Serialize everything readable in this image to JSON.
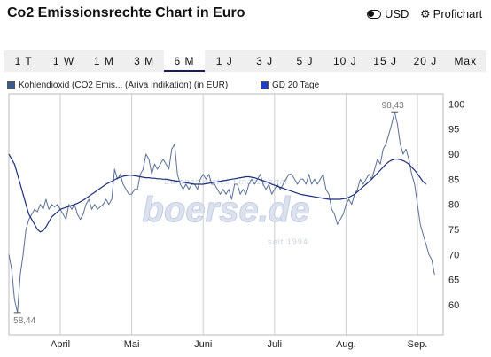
{
  "header": {
    "title": "Co2 Emissionsrechte Chart in Euro",
    "currency_label": "USD",
    "profichart_label": "Profichart"
  },
  "tabs": [
    {
      "label": "1 T",
      "active": false
    },
    {
      "label": "1 W",
      "active": false
    },
    {
      "label": "1 M",
      "active": false
    },
    {
      "label": "3 M",
      "active": false
    },
    {
      "label": "6 M",
      "active": true
    },
    {
      "label": "1 J",
      "active": false
    },
    {
      "label": "3 J",
      "active": false
    },
    {
      "label": "5 J",
      "active": false
    },
    {
      "label": "10 J",
      "active": false
    },
    {
      "label": "15 J",
      "active": false
    },
    {
      "label": "20 J",
      "active": false
    },
    {
      "label": "Max",
      "active": false
    }
  ],
  "watermark": {
    "line1": "Europas erstes Finanzportal",
    "brand": "boerse.de",
    "line3": "seit 1994"
  },
  "colors": {
    "price_line": "#5a6f95",
    "ma_line": "#1c2f7a",
    "legend_price": "#3d5a8c",
    "legend_ma": "#1f3fc8",
    "grid": "#cccccc",
    "tab_bg": "#efefef"
  },
  "chart_data": {
    "type": "line",
    "title": "",
    "x_tick_labels": [
      "April",
      "Mai",
      "Juni",
      "Juli",
      "Aug.",
      "Sep."
    ],
    "x_tick_positions": [
      18,
      43,
      68,
      93,
      118,
      143
    ],
    "x_range": [
      0,
      152
    ],
    "y_ticks": [
      60,
      65,
      70,
      75,
      80,
      85,
      90,
      95,
      100
    ],
    "ylim": [
      54,
      102
    ],
    "grid": "vertical",
    "legend_position": "top",
    "annotations": [
      {
        "text": "98,43",
        "x": 135,
        "y": 98.43
      },
      {
        "text": "58,44",
        "x": 3,
        "y": 58.44
      }
    ],
    "series": [
      {
        "name": "Kohlendioxid (CO2 Emis... (Ariva Indikation) (in EUR)",
        "values": [
          70,
          67,
          61,
          58.44,
          66,
          70,
          75,
          77,
          78,
          79,
          78.5,
          80,
          79,
          81,
          79,
          80,
          79.5,
          80,
          79,
          78,
          77,
          80,
          79,
          80,
          78,
          77,
          78,
          80,
          81,
          79,
          80,
          79,
          79.5,
          80,
          81,
          80,
          81,
          87,
          85,
          86,
          84,
          83,
          82,
          82,
          83,
          83,
          86,
          87,
          90,
          89,
          86,
          88,
          87,
          88,
          89,
          88,
          87,
          91,
          92,
          86,
          84,
          83,
          84,
          83,
          84,
          84,
          83,
          85,
          86,
          85,
          86,
          84,
          84,
          83,
          82,
          83,
          82,
          83,
          81,
          84,
          84,
          82,
          83,
          82,
          84,
          85,
          84,
          85,
          86,
          84,
          83,
          84,
          82,
          83,
          84,
          83,
          84,
          85,
          86,
          86,
          85,
          84,
          85,
          85,
          84,
          86,
          84,
          85,
          84,
          85,
          86,
          83,
          82,
          79,
          78,
          76,
          77,
          78,
          80,
          81,
          80,
          82,
          83,
          85,
          84,
          85,
          86,
          85,
          87,
          89,
          88,
          91,
          92,
          94,
          96,
          98.43,
          96,
          92,
          90,
          91,
          89,
          86,
          84,
          80,
          76,
          74,
          72,
          70,
          69,
          66
        ],
        "color": "#5a6f95"
      },
      {
        "name": "GD 20 Tage",
        "values": [
          90,
          89,
          88,
          86,
          84,
          82,
          80,
          78,
          77,
          76,
          75,
          74.5,
          74.8,
          75.5,
          76.5,
          77.5,
          78,
          78.5,
          79,
          79.2,
          79.4,
          79.6,
          79.8,
          80,
          80.2,
          80.5,
          80.8,
          81.2,
          81.6,
          82,
          82.4,
          82.8,
          83.2,
          83.6,
          84,
          84.3,
          84.6,
          84.9,
          85.2,
          85.4,
          85.6,
          85.7,
          85.8,
          85.8,
          85.7,
          85.6,
          85.5,
          85.4,
          85.3,
          85.3,
          85.2,
          85.2,
          85.1,
          85.1,
          85,
          85,
          84.9,
          84.8,
          84.7,
          84.6,
          84.5,
          84.4,
          84.3,
          84.2,
          84.1,
          84,
          84,
          84,
          84,
          84.1,
          84.2,
          84.3,
          84.4,
          84.5,
          84.6,
          84.7,
          84.8,
          84.9,
          85,
          85.1,
          85.2,
          85.3,
          85.4,
          85.5,
          85.5,
          85.4,
          85.3,
          85.1,
          84.9,
          84.7,
          84.5,
          84.3,
          84,
          83.8,
          83.6,
          83.4,
          83.2,
          83,
          82.8,
          82.6,
          82.4,
          82.2,
          82,
          81.9,
          81.8,
          81.7,
          81.6,
          81.5,
          81.4,
          81.3,
          81.2,
          81.1,
          81,
          81,
          81,
          81,
          81,
          81.1,
          81.2,
          81.4,
          81.7,
          82,
          82.5,
          83,
          83.5,
          84,
          84.5,
          85,
          85.6,
          86.2,
          86.8,
          87.4,
          88,
          88.5,
          88.8,
          89,
          89,
          88.9,
          88.7,
          88.4,
          88,
          87.4,
          86.8,
          86.1,
          85.3,
          84.5,
          84
        ],
        "color": "#1c2f7a"
      }
    ]
  }
}
